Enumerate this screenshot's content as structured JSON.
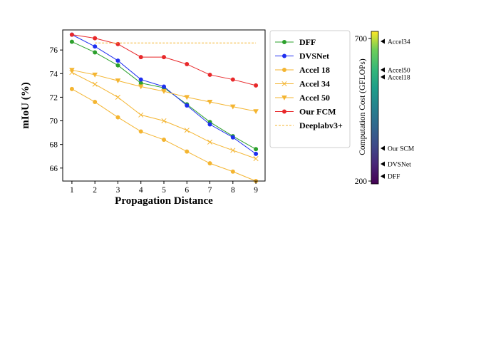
{
  "chart_data": {
    "type": "line",
    "xlabel": "Propagation Distance",
    "ylabel": "mIoU (%)",
    "x": [
      1,
      2,
      3,
      4,
      5,
      6,
      7,
      8,
      9
    ],
    "xlim": [
      0.6,
      9.4
    ],
    "ylim": [
      64.9,
      77.7
    ],
    "yticks": [
      66,
      68,
      70,
      72,
      74,
      76
    ],
    "grid": false,
    "legend_position": "outside-right",
    "series": [
      {
        "name": "DFF",
        "color": "#2ca02c",
        "marker": "circle",
        "values": [
          76.7,
          75.8,
          74.7,
          73.2,
          72.8,
          71.4,
          69.9,
          68.7,
          67.6
        ]
      },
      {
        "name": "DVSNet",
        "color": "#1f2ff0",
        "marker": "circle",
        "values": [
          77.3,
          76.3,
          75.1,
          73.5,
          72.9,
          71.3,
          69.7,
          68.6,
          67.2
        ]
      },
      {
        "name": "Accel 18",
        "color": "#f4b531",
        "marker": "circle",
        "values": [
          72.7,
          71.6,
          70.3,
          69.1,
          68.4,
          67.4,
          66.4,
          65.7,
          64.9
        ]
      },
      {
        "name": "Accel 34",
        "color": "#f4b531",
        "marker": "x",
        "values": [
          74.1,
          73.1,
          72.0,
          70.5,
          70.0,
          69.2,
          68.2,
          67.5,
          66.8
        ]
      },
      {
        "name": "Accel 50",
        "color": "#f4b531",
        "marker": "triangle-down",
        "values": [
          74.3,
          73.9,
          73.4,
          72.9,
          72.5,
          72.0,
          71.6,
          71.2,
          70.8
        ]
      },
      {
        "name": "Our FCM",
        "color": "#e8282a",
        "marker": "circle",
        "values": [
          77.3,
          77.0,
          76.5,
          75.4,
          75.4,
          74.8,
          73.9,
          73.5,
          73.0
        ]
      },
      {
        "name": "Deeplabv3+",
        "color": "#f4b531",
        "marker": "none",
        "dashed": true,
        "values": [
          76.6,
          76.6,
          76.6,
          76.6,
          76.6,
          76.6,
          76.6,
          76.6,
          76.6
        ]
      }
    ]
  },
  "colorbar": {
    "title": "Computation Cost (GFLOPs)",
    "range": [
      200,
      700
    ],
    "ticks": [
      200,
      700
    ],
    "colormap": "viridis",
    "annotations": [
      {
        "label": "Accel34",
        "value": 690
      },
      {
        "label": "Accel50",
        "value": 590
      },
      {
        "label": "Accel18",
        "value": 565
      },
      {
        "label": "Our SCM",
        "value": 315
      },
      {
        "label": "DVSNet",
        "value": 260
      },
      {
        "label": "DFF",
        "value": 217
      }
    ]
  }
}
